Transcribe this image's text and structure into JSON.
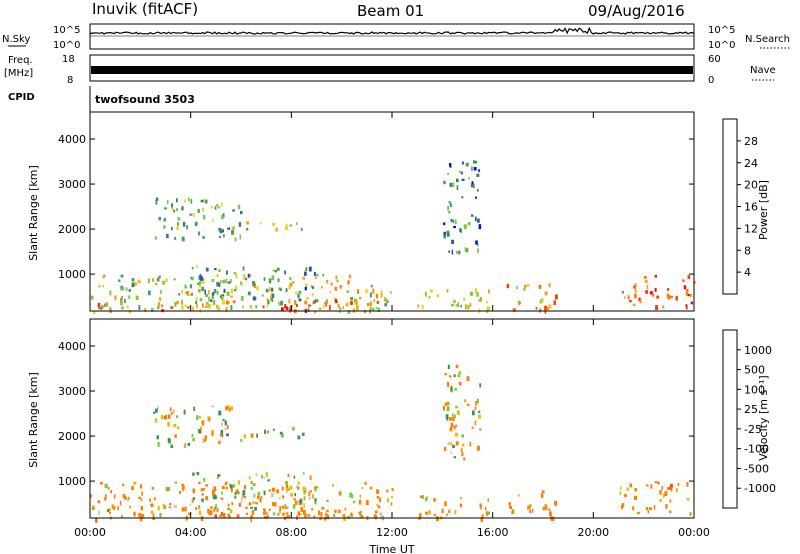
{
  "header": {
    "station": "Inuvik (fitACF)",
    "beam": "Beam 01",
    "date": "09/Aug/2016"
  },
  "noise_panel": {
    "left_label": "N.Sky",
    "left_ticks": [
      "10^5",
      "10^0"
    ],
    "right_label": "N.Search",
    "right_ticks": [
      "10^5",
      "10^0"
    ],
    "left_style": "solid",
    "right_style": "dotted"
  },
  "freq_panel": {
    "left_label_top": "Freq.",
    "left_label_units": "[MHz]",
    "left_ticks": [
      "18",
      "8"
    ],
    "right_label": "Nave",
    "right_ticks": [
      "60",
      "0"
    ],
    "right_style": "dotted"
  },
  "cpid_panel": {
    "label": "CPID",
    "program": "twofsound 3503"
  },
  "power_panel": {
    "ylabel": "Slant Range [km]",
    "yticks": [
      "4000",
      "3000",
      "2000",
      "1000"
    ],
    "colorbar": {
      "label": "Power [dB]",
      "ticks": [
        "28",
        "24",
        "20",
        "16",
        "12",
        "8",
        "4"
      ],
      "colors": [
        "#0000ff",
        "#2a4fb8",
        "#2f7f6a",
        "#3fa060",
        "#7cc840",
        "#e8d21e",
        "#f0a21e",
        "#ff7a00",
        "#ff3a00",
        "#ff0000"
      ]
    }
  },
  "velocity_panel": {
    "ylabel": "Slant Range [km]",
    "yticks": [
      "4000",
      "3000",
      "2000",
      "1000"
    ],
    "colorbar": {
      "label": "Velocity [m s⁻¹]",
      "ticks": [
        "1000",
        "500",
        "100",
        "25",
        "-25",
        "-100",
        "-500",
        "-1000"
      ],
      "colors": [
        "#1f3fb0",
        "#2f60c8",
        "#3f8f4f",
        "#6fcc3a",
        "#c8c8c0",
        "#c8c8c0",
        "#f0b800",
        "#ff8000",
        "#ff5000",
        "#ff0000"
      ]
    }
  },
  "time_axis": {
    "label": "Time UT",
    "ticks": [
      "00:00",
      "04:00",
      "08:00",
      "12:00",
      "16:00",
      "20:00",
      "00:00"
    ]
  },
  "chart_data": {
    "type": "heatmap",
    "xlim_hours": [
      0,
      24
    ],
    "ylim_km": [
      180,
      4600
    ],
    "power_db_range": [
      0,
      32
    ],
    "velocity_levels": [
      -1000,
      -500,
      -100,
      -25,
      25,
      100,
      500,
      1000
    ],
    "scatter_regions": [
      {
        "t": [
          0,
          10
        ],
        "r": [
          250,
          1000
        ],
        "power": 16,
        "vel": -200
      },
      {
        "t": [
          0,
          12
        ],
        "r": [
          180,
          420
        ],
        "power": 20,
        "vel": -300
      },
      {
        "t": [
          7.5,
          9.8
        ],
        "r": [
          200,
          450
        ],
        "power": 30,
        "vel": -300
      },
      {
        "t": [
          2.5,
          6
        ],
        "r": [
          1800,
          2700
        ],
        "power": 12,
        "vel": 0
      },
      {
        "t": [
          5,
          8.5
        ],
        "r": [
          2000,
          2200
        ],
        "power": 14,
        "vel": 0
      },
      {
        "t": [
          4,
          9
        ],
        "r": [
          400,
          1200
        ],
        "power": 10,
        "vel": 0
      },
      {
        "t": [
          10,
          12
        ],
        "r": [
          200,
          1000
        ],
        "power": 18,
        "vel": -150
      },
      {
        "t": [
          13,
          16
        ],
        "r": [
          200,
          700
        ],
        "power": 16,
        "vel": -200
      },
      {
        "t": [
          14,
          15.5
        ],
        "r": [
          1500,
          3600
        ],
        "power": 8,
        "vel": 0
      },
      {
        "t": [
          16.5,
          18.5
        ],
        "r": [
          200,
          800
        ],
        "power": 22,
        "vel": -300
      },
      {
        "t": [
          21,
          24
        ],
        "r": [
          300,
          1000
        ],
        "power": 26,
        "vel": -300
      }
    ]
  }
}
